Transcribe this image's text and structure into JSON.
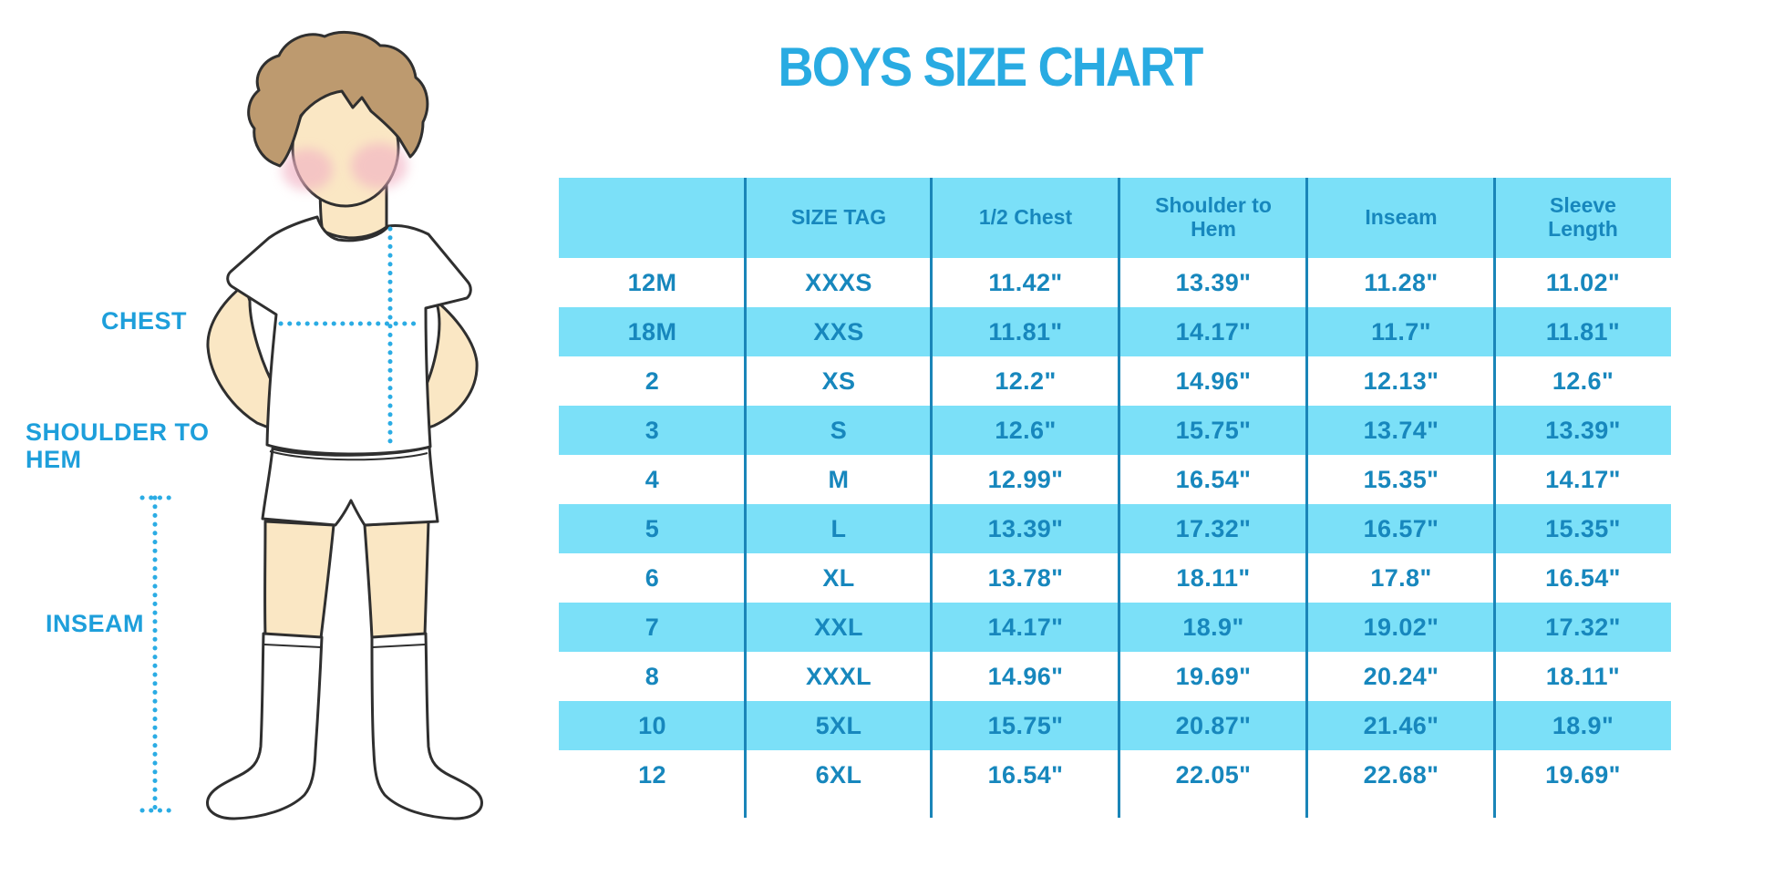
{
  "title": "BOYS SIZE CHART",
  "accent_color": "#29ABE2",
  "chart_data": {
    "type": "table",
    "title": "BOYS SIZE CHART",
    "columns": [
      "",
      "SIZE TAG",
      "1/2 Chest",
      "Shoulder to Hem",
      "Inseam",
      "Sleeve Length"
    ],
    "rows": [
      [
        "12M",
        "XXXS",
        "11.42\"",
        "13.39\"",
        "11.28\"",
        "11.02\""
      ],
      [
        "18M",
        "XXS",
        "11.81\"",
        "14.17\"",
        "11.7\"",
        "11.81\""
      ],
      [
        "2",
        "XS",
        "12.2\"",
        "14.96\"",
        "12.13\"",
        "12.6\""
      ],
      [
        "3",
        "S",
        "12.6\"",
        "15.75\"",
        "13.74\"",
        "13.39\""
      ],
      [
        "4",
        "M",
        "12.99\"",
        "16.54\"",
        "15.35\"",
        "14.17\""
      ],
      [
        "5",
        "L",
        "13.39\"",
        "17.32\"",
        "16.57\"",
        "15.35\""
      ],
      [
        "6",
        "XL",
        "13.78\"",
        "18.11\"",
        "17.8\"",
        "16.54\""
      ],
      [
        "7",
        "XXL",
        "14.17\"",
        "18.9\"",
        "19.02\"",
        "17.32\""
      ],
      [
        "8",
        "XXXL",
        "14.96\"",
        "19.69\"",
        "20.24\"",
        "18.11\""
      ],
      [
        "10",
        "5XL",
        "15.75\"",
        "20.87\"",
        "21.46\"",
        "18.9\""
      ],
      [
        "12",
        "6XL",
        "16.54\"",
        "22.05\"",
        "22.68\"",
        "19.69\""
      ]
    ],
    "stripe_color": "#7BE0F8",
    "text_color": "#1787BD",
    "divider_color": "#1A85B8",
    "layout_hints": {
      "striped_rows": true,
      "outer_border": false,
      "column_dividers_only": true
    }
  },
  "figure": {
    "labels": {
      "chest": "CHEST",
      "shoulder_to_hem": "SHOULDER TO HEM",
      "inseam": "INSEAM"
    },
    "label_color": "#1E9FDB",
    "dotted_line_color": "#2BACE4",
    "skin_color": "#FAE7C4",
    "hair_color": "#BD9A6F",
    "blush_color": "#F2B3C4",
    "clothes_color": "#FFFFFF",
    "outline_color": "#2F2F2F"
  }
}
